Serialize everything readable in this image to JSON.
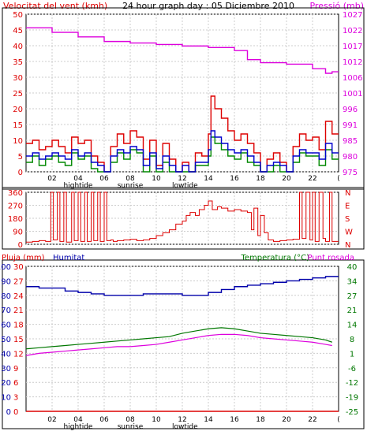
{
  "header": {
    "left_label": "Velocitat del vent (kmh)",
    "title": "24 hour graph day : 05 Diciembre 2010",
    "right_label": "Pressió (mb)"
  },
  "x_axis": {
    "hour_labels": [
      "02",
      "04",
      "06",
      "08",
      "10",
      "12",
      "14",
      "16",
      "18",
      "20",
      "22",
      "("
    ],
    "event_labels": [
      {
        "text": "hightide",
        "hour": 4
      },
      {
        "text": "sunrise",
        "hour": 8
      },
      {
        "text": "lowtide",
        "hour": 12.2
      }
    ]
  },
  "colors": {
    "wind_max": "#dd0000",
    "wind_avg": "#0000cc",
    "wind_min": "#008800",
    "pressure": "#dd00dd",
    "direction": "#dd0000",
    "humidity": "#0000aa",
    "temperature": "#007700",
    "dewpoint": "#dd00dd",
    "rain": "#dd0000",
    "grid": "#cccccc"
  },
  "chart_data": [
    {
      "type": "line",
      "title": "",
      "xlabel": "",
      "left_axis_label": "Velocitat del vent (kmh)",
      "right_axis_label": "Pressió (mb)",
      "ylim": [
        0,
        50
      ],
      "y_ticks": [
        0,
        5,
        10,
        15,
        20,
        25,
        30,
        35,
        40,
        45,
        50
      ],
      "y2lim": [
        975,
        1027
      ],
      "y2_ticks": [
        975,
        980,
        985,
        991,
        996,
        1001,
        1006,
        1012,
        1017,
        1022,
        1027
      ],
      "series": [
        {
          "name": "Velocitat del vent (kmh)",
          "role": "gust",
          "x": [
            0,
            0.5,
            1,
            1.5,
            2,
            2.5,
            3,
            3.5,
            4,
            4.5,
            5,
            5.5,
            6,
            6.5,
            7,
            7.5,
            8,
            8.5,
            9,
            9.5,
            10,
            10.5,
            11,
            11.5,
            12,
            12.5,
            13,
            13.5,
            14,
            14.2,
            14.5,
            15,
            15.5,
            16,
            16.5,
            17,
            17.5,
            18,
            18.5,
            19,
            19.5,
            20,
            20.5,
            21,
            21.5,
            22,
            22.5,
            23,
            23.5
          ],
          "values": [
            9,
            10,
            7,
            8,
            10,
            8,
            6,
            11,
            9,
            10,
            5,
            3,
            0,
            8,
            12,
            9,
            13,
            11,
            4,
            10,
            2,
            9,
            4,
            0,
            3,
            0,
            6,
            5,
            12,
            24,
            20,
            17,
            13,
            10,
            12,
            9,
            6,
            0,
            4,
            6,
            3,
            0,
            8,
            12,
            10,
            11,
            7,
            16,
            12
          ]
        },
        {
          "name": "",
          "role": "average",
          "x": [
            0,
            0.5,
            1,
            1.5,
            2,
            2.5,
            3,
            3.5,
            4,
            4.5,
            5,
            5.5,
            6,
            6.5,
            7,
            7.5,
            8,
            8.5,
            9,
            9.5,
            10,
            10.5,
            11,
            11.5,
            12,
            12.5,
            13,
            13.5,
            14,
            14.2,
            14.5,
            15,
            15.5,
            16,
            16.5,
            17,
            17.5,
            18,
            18.5,
            19,
            19.5,
            20,
            20.5,
            21,
            21.5,
            22,
            22.5,
            23,
            23.5
          ],
          "values": [
            5,
            6,
            4,
            5,
            6,
            5,
            4,
            7,
            5,
            6,
            3,
            2,
            0,
            5,
            7,
            6,
            8,
            7,
            2,
            6,
            1,
            5,
            2,
            0,
            2,
            0,
            3,
            3,
            7,
            13,
            11,
            9,
            7,
            6,
            7,
            5,
            3,
            0,
            2,
            3,
            2,
            0,
            5,
            7,
            6,
            6,
            4,
            9,
            6
          ]
        },
        {
          "name": "",
          "role": "minimum",
          "x": [
            0,
            0.5,
            1,
            1.5,
            2,
            2.5,
            3,
            3.5,
            4,
            4.5,
            5,
            5.5,
            6,
            6.5,
            7,
            7.5,
            8,
            8.5,
            9,
            9.5,
            10,
            10.5,
            11,
            11.5,
            12,
            12.5,
            13,
            13.5,
            14,
            14.2,
            14.5,
            15,
            15.5,
            16,
            16.5,
            17,
            17.5,
            18,
            18.5,
            19,
            19.5,
            20,
            20.5,
            21,
            21.5,
            22,
            22.5,
            23,
            23.5
          ],
          "values": [
            3,
            5,
            2,
            4,
            5,
            3,
            2,
            6,
            4,
            5,
            1,
            0,
            0,
            3,
            6,
            4,
            7,
            6,
            0,
            5,
            0,
            3,
            0,
            0,
            0,
            0,
            2,
            2,
            5,
            11,
            9,
            7,
            5,
            4,
            6,
            3,
            2,
            0,
            0,
            2,
            0,
            0,
            3,
            6,
            5,
            5,
            2,
            7,
            4
          ]
        },
        {
          "name": "Pressió (mb)",
          "axis": "right",
          "x": [
            0,
            2,
            4,
            6,
            8,
            10,
            12,
            14,
            16,
            17,
            18,
            20,
            22,
            23,
            23.5
          ],
          "values": [
            1022.5,
            1021,
            1019.5,
            1018,
            1017.5,
            1017,
            1016.5,
            1016,
            1015,
            1012,
            1011,
            1010.5,
            1009,
            1007.5,
            1008
          ]
        }
      ]
    },
    {
      "type": "line",
      "title": "",
      "ylim": [
        0,
        360
      ],
      "y_ticks": [
        0,
        90,
        180,
        270,
        360
      ],
      "right_tick_labels": [
        "N",
        "W",
        "S",
        "E",
        "N"
      ],
      "series": [
        {
          "name": "",
          "x": [
            0,
            0.5,
            1,
            1.5,
            1.9,
            2.1,
            2.4,
            2.6,
            2.9,
            3.1,
            3.5,
            3.7,
            4,
            4.2,
            4.5,
            4.7,
            5,
            5.2,
            5.5,
            5.7,
            6,
            6.2,
            6.5,
            6.7,
            7,
            7.5,
            8,
            8.5,
            9,
            9.5,
            10,
            10.5,
            11,
            11.5,
            12,
            12.3,
            12.6,
            13,
            13.3,
            13.7,
            14,
            14.3,
            14.7,
            15,
            15.5,
            16,
            16.5,
            17,
            17.3,
            17.5,
            17.8,
            18,
            18.3,
            18.6,
            19,
            19.5,
            20,
            20.5,
            21,
            21.2,
            21.5,
            21.8,
            22,
            22.2,
            22.5,
            22.8,
            23,
            23.3,
            23.5
          ],
          "values": [
            15,
            20,
            25,
            20,
            360,
            30,
            360,
            20,
            360,
            15,
            360,
            25,
            360,
            20,
            360,
            20,
            360,
            25,
            360,
            20,
            360,
            25,
            30,
            20,
            25,
            30,
            35,
            25,
            30,
            40,
            60,
            80,
            100,
            140,
            160,
            200,
            220,
            200,
            240,
            270,
            300,
            240,
            260,
            250,
            230,
            240,
            230,
            220,
            100,
            250,
            60,
            200,
            80,
            30,
            20,
            25,
            30,
            35,
            360,
            40,
            360,
            30,
            360,
            20,
            360,
            40,
            20,
            360,
            20
          ]
        }
      ]
    },
    {
      "type": "line",
      "title": "",
      "left_axis_labels": [
        "Pluja (mm)",
        "Humitat"
      ],
      "right_axis_labels": [
        "Temperatura (°C)",
        "Punt rosada"
      ],
      "rain_ticks": [
        0,
        3,
        6,
        9,
        12,
        15,
        18,
        21,
        24,
        27,
        30
      ],
      "humidity_ticks": [
        0,
        10,
        20,
        30,
        40,
        50,
        60,
        70,
        80,
        90,
        100
      ],
      "temperature_ticks": [
        -25,
        -19,
        -12,
        -6,
        1,
        8,
        14,
        21,
        27,
        34,
        40
      ],
      "ylim": [
        0,
        100
      ],
      "y2lim": [
        -25,
        40
      ],
      "series": [
        {
          "name": "Humitat",
          "x": [
            0,
            1,
            2,
            3,
            4,
            5,
            6,
            7,
            8,
            9,
            10,
            11,
            12,
            13,
            14,
            15,
            16,
            17,
            18,
            19,
            20,
            21,
            22,
            23,
            23.5
          ],
          "values": [
            86,
            85,
            85,
            83,
            82,
            81,
            80,
            80,
            80,
            81,
            81,
            81,
            80,
            80,
            82,
            84,
            86,
            87,
            88,
            89,
            90,
            91,
            92,
            93,
            93
          ]
        },
        {
          "name": "Temperatura (°C)",
          "axis": "right",
          "x": [
            0,
            1,
            2,
            3,
            4,
            5,
            6,
            7,
            8,
            9,
            10,
            11,
            12,
            13,
            14,
            15,
            16,
            17,
            18,
            19,
            20,
            21,
            22,
            23,
            23.5
          ],
          "values": [
            3,
            3.5,
            4,
            4.5,
            5,
            5.5,
            6,
            6.5,
            7,
            7.5,
            8,
            8.5,
            10,
            11,
            12,
            12.5,
            12,
            11,
            10,
            9.5,
            9,
            8.5,
            8,
            7,
            6
          ]
        },
        {
          "name": "Punt rosada",
          "axis": "right",
          "x": [
            0,
            1,
            2,
            3,
            4,
            5,
            6,
            7,
            8,
            9,
            10,
            11,
            12,
            13,
            14,
            15,
            16,
            17,
            18,
            19,
            20,
            21,
            22,
            23,
            23.5
          ],
          "values": [
            0,
            1,
            1.5,
            2,
            2.5,
            3,
            3.5,
            4,
            4,
            4.5,
            5,
            6,
            7,
            8,
            9,
            9.5,
            9.5,
            9,
            8,
            7.5,
            7,
            6.5,
            6,
            5,
            4.5
          ]
        },
        {
          "name": "Pluja (mm)",
          "x": [
            0,
            23.5
          ],
          "values": [
            0,
            0
          ]
        }
      ]
    }
  ]
}
